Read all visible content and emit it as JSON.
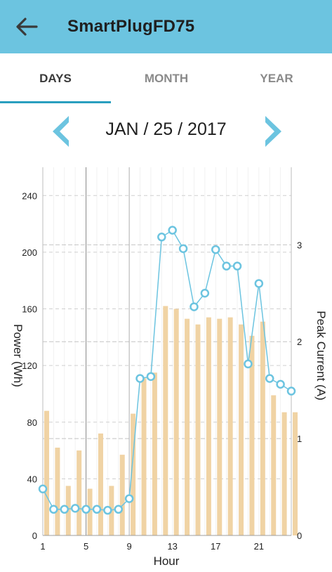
{
  "app": {
    "title": "SmartPlugFD75"
  },
  "tabs": [
    {
      "label": "DAYS",
      "active": true
    },
    {
      "label": "MONTH",
      "active": false
    },
    {
      "label": "YEAR",
      "active": false
    }
  ],
  "date": {
    "text": "JAN / 25 / 2017"
  },
  "icons": {
    "back": "arrow-left-icon",
    "prev": "chevron-left-icon",
    "next": "chevron-right-icon"
  },
  "colors": {
    "header": "#6cc4e0",
    "bar": "#f0d3a4",
    "line": "#6cc4e0",
    "accent": "#2a9fbf"
  },
  "chart_data": {
    "type": "bar",
    "xlabel": "Hour",
    "ylabel": "Power (Wh)",
    "y2label": "Peak Current (A)",
    "x": [
      1,
      2,
      3,
      4,
      5,
      6,
      7,
      8,
      9,
      10,
      11,
      12,
      13,
      14,
      15,
      16,
      17,
      18,
      19,
      20,
      21,
      22,
      23,
      24
    ],
    "xticks": [
      "1",
      "5",
      "9",
      "13",
      "17",
      "21"
    ],
    "ylim": [
      0,
      260
    ],
    "yticks": [
      "0",
      "40",
      "80",
      "120",
      "160",
      "200",
      "240"
    ],
    "y2lim": [
      0,
      3.8
    ],
    "y2ticks": [
      "0",
      "1",
      "2",
      "3"
    ],
    "grid": true,
    "series": [
      {
        "axis": "left",
        "type": "bar",
        "values": [
          88,
          62,
          35,
          60,
          33,
          72,
          35,
          57,
          86,
          111,
          115,
          162,
          160,
          153,
          149,
          154,
          153,
          154,
          149,
          141,
          151,
          99,
          87,
          87
        ]
      },
      {
        "axis": "right",
        "type": "line",
        "values": [
          0.48,
          0.27,
          0.27,
          0.28,
          0.27,
          0.27,
          0.26,
          0.27,
          0.38,
          1.62,
          1.64,
          3.08,
          3.15,
          2.96,
          2.36,
          2.5,
          2.95,
          2.78,
          2.78,
          1.77,
          2.6,
          1.62,
          1.56,
          1.49
        ]
      }
    ]
  }
}
